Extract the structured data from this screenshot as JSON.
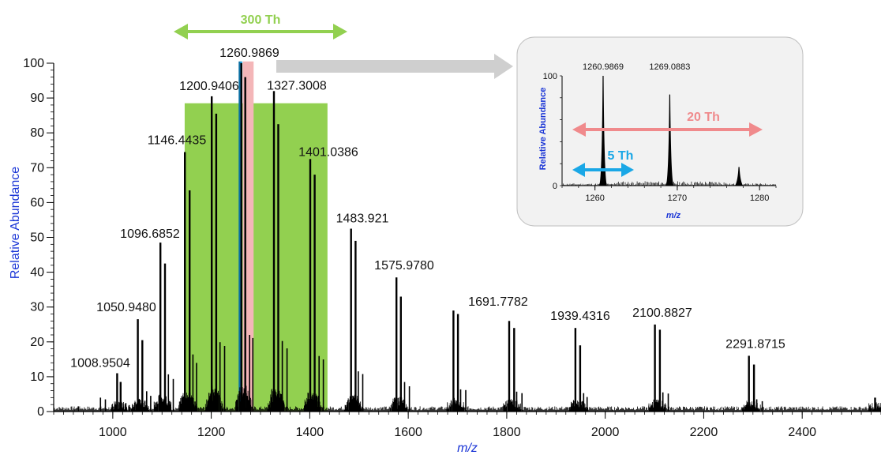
{
  "chart_data": {
    "type": "line",
    "main": {
      "xlabel": "m/z",
      "ylabel": "Relative Abundance",
      "xlim": [
        880,
        2560
      ],
      "ylim": [
        0,
        100
      ],
      "xticks": [
        1000,
        1200,
        1400,
        1600,
        1800,
        2000,
        2200,
        2400
      ],
      "yticks": [
        0,
        10,
        20,
        30,
        40,
        50,
        60,
        70,
        80,
        90,
        100
      ],
      "peaks": [
        {
          "x": 1008.9504,
          "y": 11,
          "label": "1008.9504"
        },
        {
          "x": 1016,
          "y": 8.5
        },
        {
          "x": 1050.948,
          "y": 26.5,
          "label": "1050.9480"
        },
        {
          "x": 1060,
          "y": 20.5
        },
        {
          "x": 1096.6852,
          "y": 48.5,
          "label": "1096.6852"
        },
        {
          "x": 1106,
          "y": 42.5
        },
        {
          "x": 1146.4435,
          "y": 74.5,
          "label": "1146.4435"
        },
        {
          "x": 1156,
          "y": 63.5
        },
        {
          "x": 1200.9406,
          "y": 90.5,
          "label": "1200.9406"
        },
        {
          "x": 1210,
          "y": 85.5
        },
        {
          "x": 1260.9869,
          "y": 100,
          "label": "1260.9869"
        },
        {
          "x": 1269.0883,
          "y": 96
        },
        {
          "x": 1327.3008,
          "y": 92,
          "label": "1327.3008"
        },
        {
          "x": 1336,
          "y": 82.5
        },
        {
          "x": 1401.0386,
          "y": 72.5,
          "label": "1401.0386"
        },
        {
          "x": 1410,
          "y": 68
        },
        {
          "x": 1483.921,
          "y": 52.5,
          "label": "1483.921"
        },
        {
          "x": 1493,
          "y": 49
        },
        {
          "x": 1575.978,
          "y": 38.5,
          "label": "1575.9780"
        },
        {
          "x": 1585,
          "y": 33
        },
        {
          "x": 1691.7782,
          "y": 29,
          "label": "1691.7782"
        },
        {
          "x": 1701,
          "y": 28
        },
        {
          "x": 1805,
          "y": 26
        },
        {
          "x": 1815,
          "y": 24
        },
        {
          "x": 1939.4316,
          "y": 24,
          "label": "1939.4316"
        },
        {
          "x": 1949,
          "y": 19
        },
        {
          "x": 2100.8827,
          "y": 25,
          "label": "2100.8827"
        },
        {
          "x": 2111,
          "y": 23.5
        },
        {
          "x": 2291.8715,
          "y": 16,
          "label": "2291.8715"
        },
        {
          "x": 2302,
          "y": 13.5
        },
        {
          "x": 2548,
          "y": 4
        }
      ],
      "windows": [
        {
          "from": 1146,
          "to": 1436,
          "color": "#92d050"
        },
        {
          "from": 1264,
          "to": 1286,
          "color": "#f4b6b8"
        },
        {
          "from": 1258,
          "to": 1263,
          "color": "#1f9bd7"
        }
      ]
    },
    "inset": {
      "xlabel": "m/z",
      "ylabel": "Relative Abundance",
      "xlim": [
        1256,
        1282
      ],
      "ylim": [
        0,
        100
      ],
      "xticks": [
        1260,
        1270,
        1280
      ],
      "yticks": [
        0,
        100
      ],
      "peaks": [
        {
          "x": 1260.9869,
          "y": 100,
          "label": "1260.9869"
        },
        {
          "x": 1269.0883,
          "y": 83,
          "label": "1269.0883"
        },
        {
          "x": 1277.5,
          "y": 17
        }
      ]
    },
    "annotations": {
      "green_arrow": "300 Th",
      "pink_arrow": "20 Th",
      "blue_arrow": "5 Th"
    },
    "colors": {
      "green": "#92d050",
      "pink": "#f08a8c",
      "blue": "#1aa7e6",
      "axis_title": "#1a35d6",
      "gray_arrow": "#cfcfcf",
      "inset_bg": "#f2f2f2"
    }
  }
}
